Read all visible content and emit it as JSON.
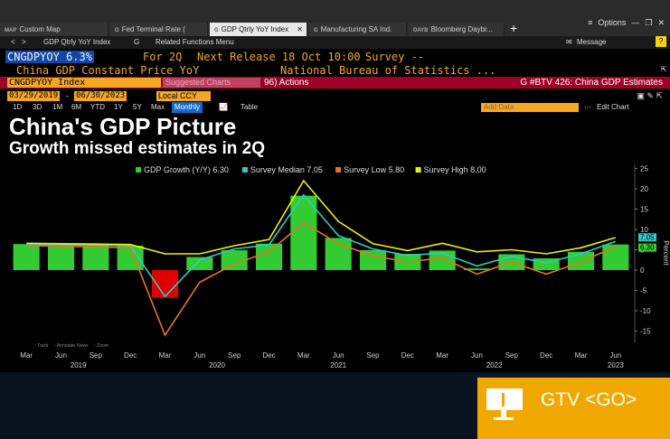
{
  "tabs": [
    {
      "prefix": "MAP",
      "label": "Custom Map",
      "active": false
    },
    {
      "prefix": "G",
      "label": "Fed Terminal Rate (",
      "active": false
    },
    {
      "prefix": "G",
      "label": "GDP Qtrly YoY Index",
      "active": true
    },
    {
      "prefix": "G",
      "label": "Manufacturing SA Ind.",
      "active": false
    },
    {
      "prefix": "DAYB",
      "label": "Bloomberg Daybr...",
      "active": false
    }
  ],
  "window": {
    "options": "Options",
    "plus": "+"
  },
  "nav": {
    "back": "<",
    "forward": ">",
    "security": "GDP Qtrly YoY Index",
    "menu": "G",
    "related": "Related Functions Menu",
    "message": "Message",
    "help": "?"
  },
  "ticker": {
    "symbol": "CNGDPYOY 6.3%",
    "for": "For 2Q",
    "next_release": "Next Release 18 Oct 10:00",
    "survey": "Survey --",
    "name": "China GDP Constant Price YoY",
    "source": "National Bureau of Statistics ..."
  },
  "command": {
    "input": "CNGDPYOY Index",
    "suggest": "Suggested Charts",
    "actions": "96) Actions",
    "btv": "G #BTV 426: China GDP Estimates"
  },
  "dates": {
    "start": "03/29/2019",
    "end": "06/30/2023",
    "currency": "Local CCY"
  },
  "periods": [
    "1D",
    "3D",
    "1M",
    "6M",
    "YTD",
    "1Y",
    "5Y",
    "Max"
  ],
  "period_selected": "Monthly",
  "table_label": "Table",
  "add_data": "Add Data",
  "edit_chart": "Edit Chart",
  "tools": [
    "Track",
    "Annotate",
    "News",
    "Zoom"
  ],
  "gtv": {
    "label": "GTV <GO>"
  },
  "colors": {
    "bars": "#33cc33",
    "negative_bar": "#e00000",
    "median": "#30c8c8",
    "low": "#e8741c",
    "high": "#f0f000",
    "command_bg": "#a00025",
    "accent": "#f5a623"
  },
  "chart_data": {
    "type": "bar",
    "title": "China's GDP Picture",
    "subtitle": "Growth missed estimates in 2Q",
    "legend": [
      {
        "label": "GDP Growth (Y/Y) 6.30",
        "color": "#33cc33"
      },
      {
        "label": "Survey Median 7.05",
        "color": "#30c8c8"
      },
      {
        "label": "Survey Low 5.80",
        "color": "#e8741c"
      },
      {
        "label": "Survey High 8.00",
        "color": "#f0f000"
      }
    ],
    "legend_position": "top",
    "categories": [
      "1Q19",
      "2Q19",
      "3Q19",
      "4Q19",
      "1Q20",
      "2Q20",
      "3Q20",
      "4Q20",
      "1Q21",
      "2Q21",
      "3Q21",
      "4Q21",
      "1Q22",
      "2Q22",
      "3Q22",
      "4Q22",
      "1Q23",
      "2Q23"
    ],
    "series": [
      {
        "name": "GDP Growth (Y/Y)",
        "type": "bar",
        "values": [
          6.4,
          6.2,
          6.0,
          6.0,
          -6.8,
          3.2,
          4.9,
          6.5,
          18.3,
          7.9,
          4.9,
          4.0,
          4.8,
          0.4,
          3.9,
          2.9,
          4.5,
          6.3
        ]
      },
      {
        "name": "Survey Median",
        "type": "line",
        "values": [
          6.3,
          6.2,
          6.1,
          6.0,
          -6.5,
          2.5,
          5.2,
          6.2,
          18.5,
          8.5,
          5.2,
          3.6,
          4.2,
          1.0,
          3.4,
          1.8,
          4.0,
          7.05
        ]
      },
      {
        "name": "Survey Low",
        "type": "line",
        "values": [
          6.0,
          5.9,
          5.7,
          5.5,
          -16.0,
          -3.0,
          1.5,
          4.5,
          11.7,
          6.5,
          3.5,
          2.0,
          3.0,
          -1.0,
          2.0,
          -1.0,
          2.0,
          5.8
        ]
      },
      {
        "name": "Survey High",
        "type": "line",
        "values": [
          6.6,
          6.5,
          6.4,
          6.3,
          4.0,
          4.0,
          6.0,
          7.5,
          22.0,
          12.0,
          6.5,
          4.8,
          6.6,
          4.5,
          5.0,
          4.0,
          5.5,
          8.0
        ]
      }
    ],
    "y_axis": {
      "position": "right",
      "label": "Percent",
      "range": [
        -18,
        26
      ],
      "ticks": [
        -15,
        -10,
        -5,
        0,
        5,
        10,
        15,
        20,
        25
      ]
    },
    "x_ticks": [
      "Mar",
      "Jun",
      "Sep",
      "Dec",
      "Mar",
      "Jun",
      "Sep",
      "Dec",
      "Mar",
      "Jun",
      "Sep",
      "Dec",
      "Mar",
      "Jun",
      "Sep",
      "Dec",
      "Mar",
      "Jun"
    ],
    "years": [
      {
        "label": "2019",
        "index": 1.5
      },
      {
        "label": "2020",
        "index": 5.5
      },
      {
        "label": "2021",
        "index": 9.0
      },
      {
        "label": "2022",
        "index": 13.5
      },
      {
        "label": "2023",
        "index": 17.0
      }
    ],
    "end_labels": [
      "7.05",
      "6.30"
    ],
    "grid": false
  }
}
